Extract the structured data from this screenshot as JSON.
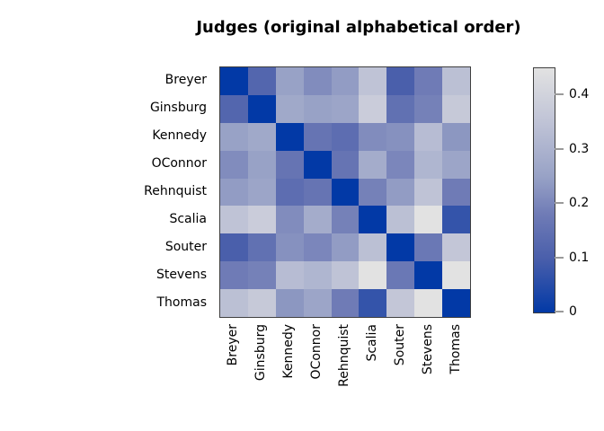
{
  "title": "Judges (original alphabetical order)",
  "chart_data": {
    "type": "heatmap",
    "title": "Judges (original alphabetical order)",
    "row_labels": [
      "Breyer",
      "Ginsburg",
      "Kennedy",
      "OConnor",
      "Rehnquist",
      "Scalia",
      "Souter",
      "Stevens",
      "Thomas"
    ],
    "col_labels": [
      "Breyer",
      "Ginsburg",
      "Kennedy",
      "OConnor",
      "Rehnquist",
      "Scalia",
      "Souter",
      "Stevens",
      "Thomas"
    ],
    "matrix": [
      [
        0.0,
        0.12,
        0.25,
        0.21,
        0.24,
        0.35,
        0.1,
        0.18,
        0.34
      ],
      [
        0.12,
        0.0,
        0.27,
        0.25,
        0.26,
        0.38,
        0.15,
        0.19,
        0.37
      ],
      [
        0.25,
        0.27,
        0.0,
        0.16,
        0.14,
        0.21,
        0.22,
        0.33,
        0.23
      ],
      [
        0.21,
        0.25,
        0.16,
        0.0,
        0.16,
        0.28,
        0.2,
        0.31,
        0.26
      ],
      [
        0.24,
        0.26,
        0.14,
        0.16,
        0.0,
        0.19,
        0.24,
        0.35,
        0.18
      ],
      [
        0.35,
        0.38,
        0.21,
        0.28,
        0.19,
        0.0,
        0.34,
        0.45,
        0.07
      ],
      [
        0.1,
        0.15,
        0.22,
        0.2,
        0.24,
        0.34,
        0.0,
        0.17,
        0.36
      ],
      [
        0.18,
        0.19,
        0.33,
        0.31,
        0.35,
        0.45,
        0.17,
        0.0,
        0.45
      ],
      [
        0.34,
        0.37,
        0.23,
        0.26,
        0.18,
        0.07,
        0.36,
        0.45,
        0.0
      ]
    ],
    "value_range": [
      0,
      0.45
    ],
    "legend": {
      "position": "right",
      "orientation": "vertical",
      "ticks": [
        0,
        0.1,
        0.2,
        0.3,
        0.4
      ],
      "tick_labels": [
        "0",
        "0.1",
        "0.2",
        "0.3",
        "0.4"
      ]
    },
    "colormap": [
      {
        "value": 0.0,
        "color": "#0239A6"
      },
      {
        "value": 0.1,
        "color": "#4A5FAB"
      },
      {
        "value": 0.18,
        "color": "#6F7BB6"
      },
      {
        "value": 0.25,
        "color": "#98A2C6"
      },
      {
        "value": 0.35,
        "color": "#BFC3D6"
      },
      {
        "value": 0.45,
        "color": "#E2E2E2"
      }
    ],
    "grid": false,
    "border_color": "#3f3f3f",
    "tick_color": "#9a9a9a"
  }
}
